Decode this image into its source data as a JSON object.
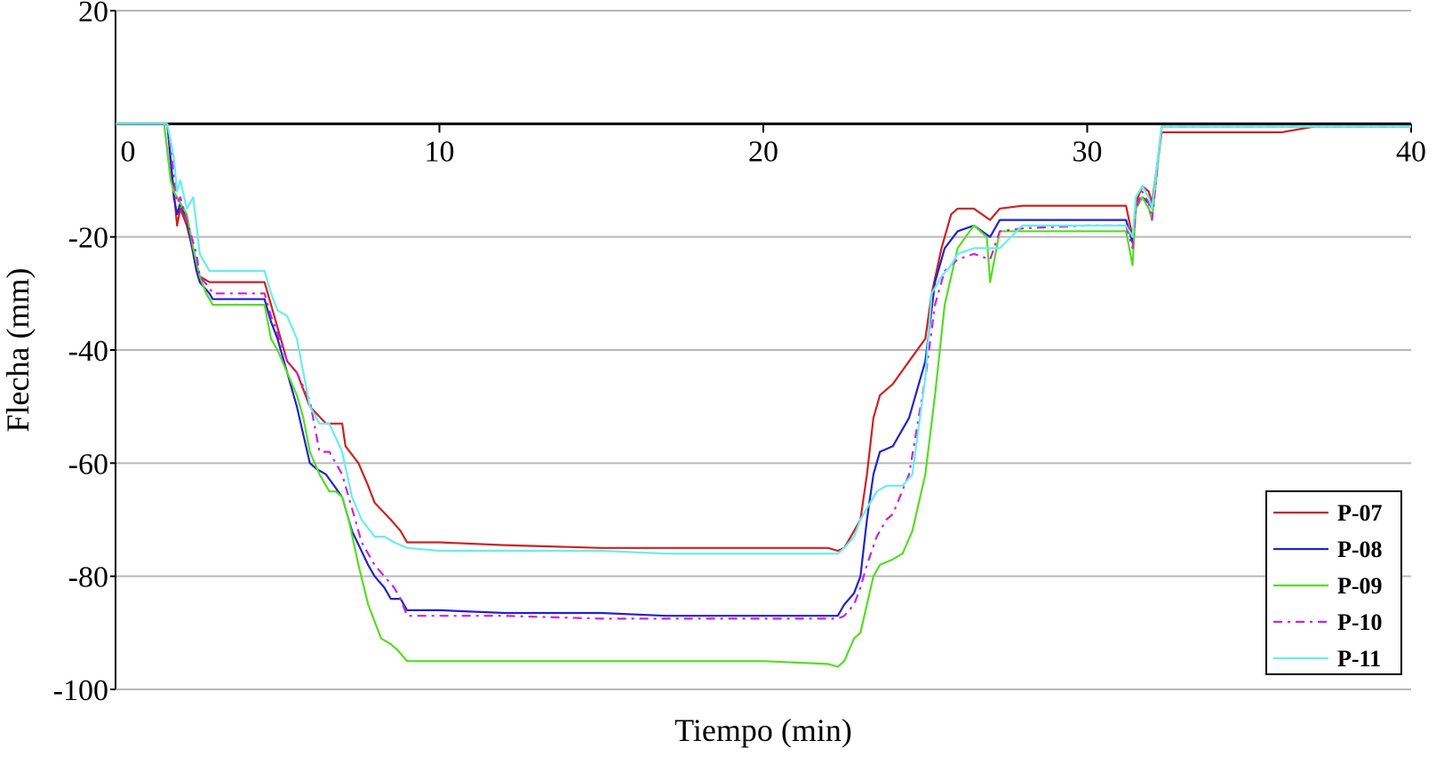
{
  "chart_data": {
    "type": "line",
    "title": "",
    "xlabel": "Tiempo (min)",
    "ylabel": "Flecha (mm)",
    "xlim": [
      0,
      40
    ],
    "ylim": [
      -100,
      20
    ],
    "xticks": [
      0,
      10,
      20,
      30,
      40
    ],
    "xtick_labels": [
      "0",
      "10",
      "20",
      "30",
      "40"
    ],
    "yticks": [
      20,
      -20,
      -40,
      -60,
      -80,
      -100
    ],
    "ytick_labels": [
      "20",
      "-20",
      "-40",
      "-60",
      "-80",
      "-100"
    ],
    "grid": true,
    "legend_position": "bottom-right",
    "series": [
      {
        "name": "P-07",
        "color": "#cc2222",
        "dash": "solid",
        "x": [
          0,
          1.6,
          1.8,
          1.9,
          2.0,
          2.2,
          2.5,
          2.6,
          2.9,
          3.0,
          4.6,
          4.8,
          5.0,
          5.3,
          5.6,
          6.0,
          6.5,
          7.0,
          7.1,
          7.5,
          7.8,
          8.0,
          8.5,
          8.8,
          9.0,
          10,
          12,
          15,
          17,
          20,
          22,
          22.3,
          22.5,
          22.8,
          23.0,
          23.2,
          23.4,
          23.6,
          24.0,
          24.5,
          25.0,
          25.2,
          25.5,
          25.8,
          26.0,
          26.5,
          27.0,
          27.3,
          28,
          30,
          31.2,
          31.4,
          31.5,
          31.7,
          31.9,
          32.0,
          32.3,
          33,
          36,
          37,
          40
        ],
        "y": [
          0,
          0,
          -12,
          -18,
          -15,
          -18,
          -25,
          -27,
          -28,
          -28,
          -28,
          -32,
          -36,
          -42,
          -44,
          -50,
          -53,
          -53,
          -57,
          -60,
          -64,
          -67,
          -70,
          -72,
          -74,
          -74,
          -74.5,
          -75,
          -75,
          -75,
          -75,
          -75.5,
          -75,
          -72,
          -70,
          -62,
          -52,
          -48,
          -46,
          -42,
          -38,
          -30,
          -22,
          -16,
          -15,
          -15,
          -17,
          -15,
          -14.5,
          -14.5,
          -14.5,
          -20,
          -14,
          -11,
          -12,
          -14,
          -1.5,
          -1.5,
          -1.5,
          -0.5,
          -0.5
        ]
      },
      {
        "name": "P-08",
        "color": "#2222cc",
        "dash": "solid",
        "x": [
          0,
          1.6,
          1.8,
          1.9,
          2.0,
          2.2,
          2.5,
          2.6,
          2.9,
          3.0,
          4.6,
          4.8,
          5.0,
          5.3,
          5.6,
          5.8,
          6.0,
          6.2,
          6.5,
          7.0,
          7.3,
          7.8,
          8.0,
          8.3,
          8.5,
          8.8,
          9.0,
          10,
          12,
          15,
          17,
          20,
          22.3,
          22.5,
          22.8,
          23.0,
          23.2,
          23.4,
          23.6,
          24.0,
          24.5,
          25.0,
          25.3,
          25.6,
          26.0,
          26.5,
          27.0,
          27.3,
          28,
          30,
          31.2,
          31.4,
          31.5,
          31.7,
          31.9,
          32.0,
          32.3,
          40
        ],
        "y": [
          0,
          0,
          -13,
          -16,
          -14,
          -17,
          -26,
          -28,
          -30,
          -31,
          -31,
          -35,
          -38,
          -44,
          -50,
          -55,
          -60,
          -61,
          -62,
          -66,
          -72,
          -78,
          -80,
          -82,
          -84,
          -84,
          -86,
          -86,
          -86.5,
          -86.5,
          -87,
          -87,
          -87,
          -85,
          -83,
          -80,
          -70,
          -62,
          -58,
          -57,
          -52,
          -42,
          -28,
          -22,
          -19,
          -18,
          -20,
          -17,
          -17,
          -17,
          -17,
          -21,
          -15,
          -13,
          -14,
          -15,
          -0.5,
          -0.5
        ]
      },
      {
        "name": "P-09",
        "color": "#55dd22",
        "dash": "solid",
        "x": [
          0,
          1.5,
          1.7,
          1.8,
          2.0,
          2.2,
          2.4,
          2.6,
          2.8,
          3.0,
          4.6,
          4.8,
          5.0,
          5.3,
          5.6,
          5.8,
          6.0,
          6.3,
          6.6,
          6.8,
          7.0,
          7.2,
          7.5,
          7.8,
          8.0,
          8.2,
          8.5,
          8.7,
          9.0,
          10,
          12,
          15,
          20,
          22.0,
          22.3,
          22.5,
          22.8,
          23.0,
          23.2,
          23.4,
          23.6,
          24.0,
          24.3,
          24.6,
          25.0,
          25.3,
          25.6,
          26.0,
          26.5,
          26.9,
          27.0,
          27.3,
          28,
          30,
          31.2,
          31.4,
          31.5,
          31.7,
          31.9,
          32.0,
          32.3,
          40
        ],
        "y": [
          0,
          0,
          -10,
          -12,
          -14,
          -16,
          -22,
          -27,
          -30,
          -32,
          -32,
          -38,
          -40,
          -44,
          -48,
          -52,
          -58,
          -62,
          -65,
          -65,
          -66,
          -70,
          -78,
          -85,
          -88,
          -91,
          -92,
          -93,
          -95,
          -95,
          -95,
          -95,
          -95,
          -95.5,
          -96,
          -95,
          -91,
          -90,
          -85,
          -80,
          -78,
          -77,
          -76,
          -72,
          -62,
          -48,
          -32,
          -22,
          -18,
          -20,
          -28,
          -19,
          -19,
          -19,
          -19,
          -25,
          -15,
          -13,
          -15,
          -17,
          -0.5,
          -0.5
        ]
      },
      {
        "name": "P-10",
        "color": "#cc22dd",
        "dash": "10,6,3,6",
        "x": [
          0,
          1.6,
          1.8,
          1.9,
          2.0,
          2.2,
          2.5,
          2.6,
          2.9,
          3.0,
          4.6,
          4.8,
          5.0,
          5.3,
          5.6,
          6.0,
          6.3,
          6.6,
          7.0,
          7.3,
          7.6,
          8.0,
          8.3,
          8.6,
          8.8,
          9.0,
          10,
          12,
          15,
          17,
          20,
          22.3,
          22.5,
          22.8,
          23.0,
          23.2,
          23.5,
          23.8,
          24.0,
          24.5,
          25.0,
          25.3,
          25.6,
          26.0,
          26.5,
          27.0,
          27.3,
          28,
          30,
          31.2,
          31.4,
          31.5,
          31.7,
          31.9,
          32.0,
          32.3,
          40
        ],
        "y": [
          0,
          0,
          -9,
          -14,
          -13,
          -17,
          -23,
          -27,
          -29,
          -30,
          -30,
          -34,
          -37,
          -42,
          -44,
          -49,
          -58,
          -58,
          -62,
          -68,
          -74,
          -78,
          -80,
          -82,
          -84,
          -87,
          -87,
          -87,
          -87.5,
          -87.5,
          -87.5,
          -87.5,
          -87,
          -85,
          -82,
          -78,
          -73,
          -70,
          -69,
          -62,
          -45,
          -32,
          -26,
          -24,
          -23,
          -24,
          -19,
          -18.5,
          -18,
          -18,
          -22,
          -15,
          -12,
          -14,
          -17,
          -0.5,
          -0.5
        ]
      },
      {
        "name": "P-11",
        "color": "#66eeee",
        "dash": "solid",
        "x": [
          0,
          1.6,
          1.8,
          1.9,
          2.0,
          2.2,
          2.4,
          2.6,
          2.9,
          3.0,
          4.6,
          4.8,
          5.0,
          5.3,
          5.6,
          5.8,
          6.0,
          6.3,
          6.6,
          7.0,
          7.3,
          7.6,
          8.0,
          8.3,
          8.6,
          9.0,
          10,
          12,
          15,
          17,
          20,
          22,
          22.3,
          22.5,
          22.8,
          23.0,
          23.2,
          23.5,
          23.8,
          24.0,
          24.3,
          24.6,
          25.0,
          25.2,
          25.5,
          25.8,
          26.0,
          26.5,
          27.0,
          27.3,
          28,
          30,
          31.2,
          31.4,
          31.5,
          31.7,
          31.9,
          32.0,
          32.3,
          40
        ],
        "y": [
          0,
          0,
          -6,
          -12,
          -10,
          -15,
          -13,
          -23,
          -26,
          -26,
          -26,
          -30,
          -33,
          -34,
          -38,
          -44,
          -50,
          -53,
          -53,
          -58,
          -66,
          -70,
          -73,
          -73,
          -74,
          -75,
          -75.5,
          -75.5,
          -75.5,
          -76,
          -76,
          -76,
          -76,
          -75,
          -73,
          -70,
          -68,
          -65,
          -64,
          -64,
          -64,
          -62,
          -45,
          -30,
          -27,
          -25,
          -23,
          -22,
          -22,
          -22,
          -18,
          -18,
          -18,
          -20,
          -13,
          -11,
          -13,
          -15,
          -0.5,
          -0.5
        ]
      }
    ]
  }
}
